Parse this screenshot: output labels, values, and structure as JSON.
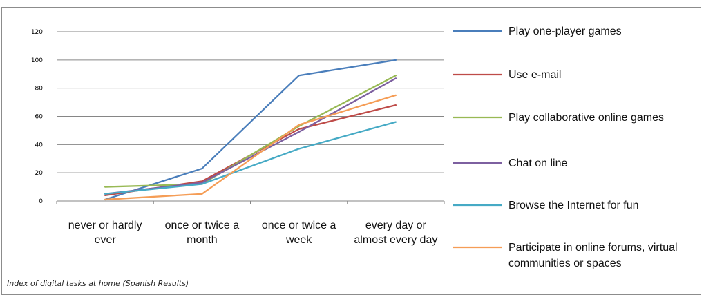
{
  "chart_data": {
    "type": "line",
    "title": "",
    "xlabel": "",
    "ylabel": "",
    "caption": "Index of digital tasks at home (Spanish Results)",
    "ylim": [
      0,
      120
    ],
    "yticks": [
      "0",
      "20",
      "40",
      "60",
      "80",
      "100",
      "120"
    ],
    "grid": true,
    "legend_position": "right",
    "categories": [
      [
        "never or hardly",
        "ever"
      ],
      [
        "once or twice a",
        "month"
      ],
      [
        "once or twice a",
        "week"
      ],
      [
        "every day or",
        "almost every day"
      ]
    ],
    "series": [
      {
        "name": [
          "Play one-player games"
        ],
        "color": "#4a7ebb",
        "values": [
          1,
          23,
          89,
          100
        ]
      },
      {
        "name": [
          "Use e-mail"
        ],
        "color": "#be4b48",
        "values": [
          4,
          14,
          51,
          68
        ]
      },
      {
        "name": [
          "Play collaborative online games"
        ],
        "color": "#98b954",
        "values": [
          10,
          12,
          53,
          89
        ]
      },
      {
        "name": [
          "Chat on line"
        ],
        "color": "#7d60a0",
        "values": [
          5,
          13,
          49,
          87
        ]
      },
      {
        "name": [
          "Browse the Internet for fun"
        ],
        "color": "#46aac5",
        "values": [
          5,
          12,
          37,
          56
        ]
      },
      {
        "name": [
          "Participate in online forums, virtual",
          "communities or spaces"
        ],
        "color": "#f59d56",
        "values": [
          1,
          5,
          54,
          75
        ]
      }
    ]
  }
}
